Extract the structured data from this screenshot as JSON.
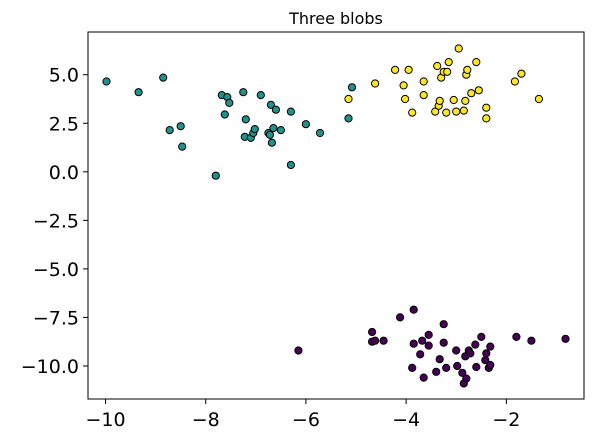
{
  "chart_data": {
    "type": "scatter",
    "title": "Three blobs",
    "xlabel": "",
    "ylabel": "",
    "xlim": [
      -10.35,
      -0.45
    ],
    "ylim": [
      -11.7,
      7.2
    ],
    "xticks": [
      -10,
      -8,
      -6,
      -4,
      -2
    ],
    "yticks": [
      5.0,
      2.5,
      0.0,
      -2.5,
      -5.0,
      -7.5,
      -10.0
    ],
    "xtick_labels": [
      "−10",
      "−8",
      "−6",
      "−4",
      "−2"
    ],
    "ytick_labels": [
      "5.0",
      "2.5",
      "0.0",
      "−2.5",
      "−5.0",
      "−7.5",
      "−10.0"
    ],
    "grid": false,
    "legend": "none",
    "series": [
      {
        "color": "#21918c",
        "points": [
          [
            -9.98,
            4.65
          ],
          [
            -9.34,
            4.1
          ],
          [
            -8.85,
            4.85
          ],
          [
            -8.72,
            2.15
          ],
          [
            -8.5,
            2.35
          ],
          [
            -8.47,
            1.3
          ],
          [
            -7.8,
            -0.2
          ],
          [
            -7.68,
            3.95
          ],
          [
            -7.62,
            2.95
          ],
          [
            -7.57,
            3.85
          ],
          [
            -7.53,
            3.55
          ],
          [
            -7.25,
            4.1
          ],
          [
            -7.22,
            1.8
          ],
          [
            -7.2,
            2.7
          ],
          [
            -7.1,
            1.75
          ],
          [
            -7.05,
            2.0
          ],
          [
            -7.02,
            2.2
          ],
          [
            -6.9,
            3.95
          ],
          [
            -6.75,
            2.0
          ],
          [
            -6.72,
            1.9
          ],
          [
            -6.7,
            3.45
          ],
          [
            -6.68,
            1.5
          ],
          [
            -6.65,
            2.25
          ],
          [
            -6.6,
            3.2
          ],
          [
            -6.5,
            2.15
          ],
          [
            -6.3,
            0.35
          ],
          [
            -6.3,
            3.1
          ],
          [
            -6.0,
            2.45
          ],
          [
            -5.72,
            2.0
          ],
          [
            -5.15,
            2.75
          ],
          [
            -5.08,
            4.35
          ]
        ]
      },
      {
        "color": "#fde725",
        "points": [
          [
            -5.15,
            3.75
          ],
          [
            -4.62,
            4.55
          ],
          [
            -4.22,
            5.25
          ],
          [
            -4.05,
            4.45
          ],
          [
            -4.02,
            3.75
          ],
          [
            -3.95,
            5.25
          ],
          [
            -3.88,
            3.05
          ],
          [
            -3.65,
            4.65
          ],
          [
            -3.65,
            3.95
          ],
          [
            -3.42,
            3.1
          ],
          [
            -3.38,
            5.45
          ],
          [
            -3.35,
            3.4
          ],
          [
            -3.33,
            3.65
          ],
          [
            -3.3,
            4.85
          ],
          [
            -3.25,
            5.15
          ],
          [
            -3.2,
            3.05
          ],
          [
            -3.18,
            5.15
          ],
          [
            -3.15,
            5.65
          ],
          [
            -3.05,
            3.7
          ],
          [
            -3.0,
            3.1
          ],
          [
            -2.95,
            6.35
          ],
          [
            -2.85,
            3.15
          ],
          [
            -2.82,
            3.65
          ],
          [
            -2.8,
            5.0
          ],
          [
            -2.78,
            5.25
          ],
          [
            -2.7,
            4.05
          ],
          [
            -2.6,
            5.65
          ],
          [
            -2.55,
            4.2
          ],
          [
            -2.4,
            3.3
          ],
          [
            -2.4,
            2.75
          ],
          [
            -1.83,
            4.65
          ],
          [
            -1.7,
            5.05
          ],
          [
            -1.35,
            3.75
          ]
        ]
      },
      {
        "color": "#440154",
        "points": [
          [
            -6.15,
            -9.2
          ],
          [
            -4.68,
            -8.25
          ],
          [
            -4.68,
            -8.75
          ],
          [
            -4.62,
            -8.7
          ],
          [
            -4.45,
            -8.7
          ],
          [
            -4.12,
            -7.5
          ],
          [
            -3.85,
            -7.1
          ],
          [
            -3.88,
            -10.1
          ],
          [
            -3.85,
            -8.85
          ],
          [
            -3.72,
            -9.4
          ],
          [
            -3.68,
            -8.7
          ],
          [
            -3.65,
            -10.6
          ],
          [
            -3.55,
            -8.4
          ],
          [
            -3.55,
            -8.95
          ],
          [
            -3.4,
            -10.3
          ],
          [
            -3.33,
            -9.65
          ],
          [
            -3.25,
            -7.85
          ],
          [
            -3.25,
            -8.8
          ],
          [
            -3.2,
            -10.1
          ],
          [
            -3.0,
            -9.2
          ],
          [
            -2.98,
            -10.0
          ],
          [
            -2.88,
            -10.35
          ],
          [
            -2.85,
            -10.9
          ],
          [
            -2.82,
            -9.5
          ],
          [
            -2.8,
            -10.65
          ],
          [
            -2.75,
            -9.2
          ],
          [
            -2.72,
            -9.35
          ],
          [
            -2.62,
            -8.9
          ],
          [
            -2.6,
            -10.05
          ],
          [
            -2.5,
            -8.5
          ],
          [
            -2.42,
            -9.7
          ],
          [
            -2.4,
            -9.35
          ],
          [
            -2.35,
            -10.1
          ],
          [
            -2.32,
            -9.95
          ],
          [
            -2.32,
            -9.0
          ],
          [
            -1.8,
            -8.5
          ],
          [
            -1.5,
            -8.7
          ],
          [
            -0.82,
            -8.6
          ]
        ]
      }
    ]
  }
}
